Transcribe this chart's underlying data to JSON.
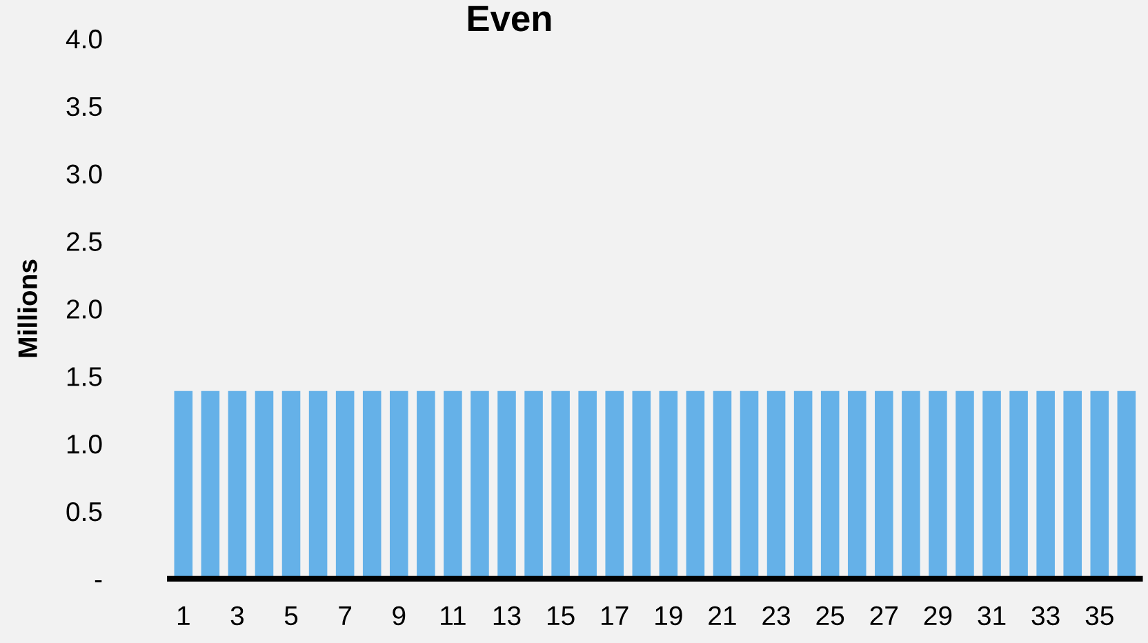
{
  "chart_data": {
    "type": "bar",
    "title": "Even",
    "ylabel": "Millions",
    "categories": [
      "1",
      null,
      "3",
      null,
      "5",
      null,
      "7",
      null,
      "9",
      null,
      "11",
      null,
      "13",
      null,
      "15",
      null,
      "17",
      null,
      "19",
      null,
      "21",
      null,
      "23",
      null,
      "25",
      null,
      "27",
      null,
      "29",
      null,
      "31",
      null,
      "33",
      null,
      "35",
      null
    ],
    "values": [
      1.39,
      1.39,
      1.39,
      1.39,
      1.39,
      1.39,
      1.39,
      1.39,
      1.39,
      1.39,
      1.39,
      1.39,
      1.39,
      1.39,
      1.39,
      1.39,
      1.39,
      1.39,
      1.39,
      1.39,
      1.39,
      1.39,
      1.39,
      1.39,
      1.39,
      1.39,
      1.39,
      1.39,
      1.39,
      1.39,
      1.39,
      1.39,
      1.39,
      1.39,
      1.39,
      1.39
    ],
    "color": "#65b1e8",
    "ylim": [
      0,
      4
    ],
    "yticks": [
      {
        "value": 0,
        "label": "-"
      },
      0.5,
      {
        "value": 1,
        "label": "1.0"
      },
      1.5,
      {
        "value": 2,
        "label": "2.0"
      },
      2.5,
      {
        "value": 3,
        "label": "3.0"
      },
      3.5,
      {
        "value": 4,
        "label": "4.0"
      }
    ],
    "grid": false,
    "legend": false
  }
}
